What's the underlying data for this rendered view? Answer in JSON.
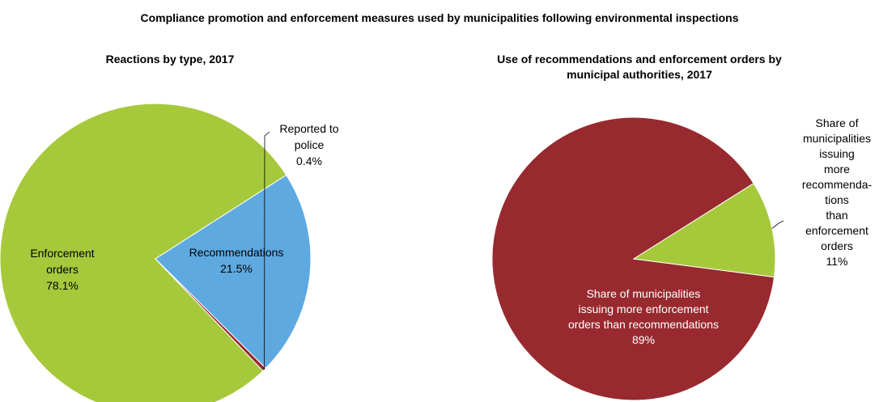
{
  "title": "Compliance promotion and enforcement measures used by municipalities following environmental inspections",
  "chart_data": [
    {
      "type": "pie",
      "title": "Reactions by type, 2017",
      "slices": [
        {
          "label": [
            "Enforcement",
            "orders"
          ],
          "value": 78.1,
          "value_label": "78.1%",
          "color": "#a6c93b"
        },
        {
          "label": [
            "Recommendations"
          ],
          "value": 21.5,
          "value_label": "21.5%",
          "color": "#5ea9e0"
        },
        {
          "label": [
            "Reported to",
            "police"
          ],
          "value": 0.4,
          "value_label": "0.4%",
          "color": "#982a2f"
        }
      ]
    },
    {
      "type": "pie",
      "title": "Use of recommendations and enforcement orders by municipal authorities, 2017",
      "title_lines": [
        "Use of recommendations and enforcement orders by",
        "municipal authorities, 2017"
      ],
      "slices": [
        {
          "label": [
            "Share of municipalities",
            "issuing more enforcement",
            "orders than recommendations"
          ],
          "value": 89,
          "value_label": "89%",
          "color": "#982a2f"
        },
        {
          "label": [
            "Share of",
            "municipalities",
            "issuing",
            "more",
            "recommenda-",
            "tions",
            "than",
            "enforcement",
            "orders"
          ],
          "value": 11,
          "value_label": "11%",
          "color": "#a6c93b"
        }
      ]
    }
  ]
}
